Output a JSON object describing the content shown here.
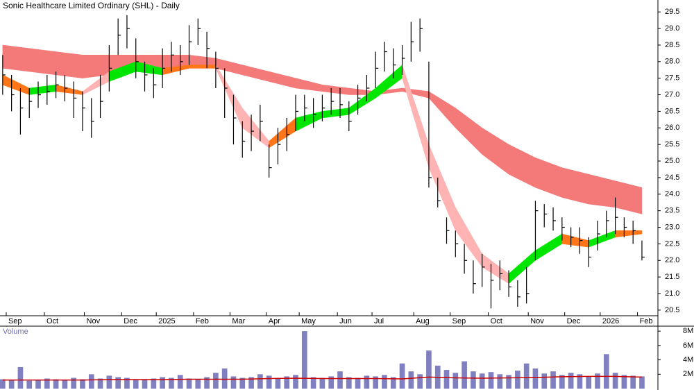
{
  "chart_data": [
    {
      "type": "ohlc",
      "title": "Sonic Healthcare Limited Ordinary (SHL) - Daily",
      "xlim": [
        -0.3,
        73.8
      ],
      "xticks": [
        {
          "value": 0.4,
          "label": "Sep"
        },
        {
          "value": 4.7,
          "label": "Oct"
        },
        {
          "value": 9.2,
          "label": "Nov"
        },
        {
          "value": 13.4,
          "label": "Dec"
        },
        {
          "value": 17.3,
          "label": "2025"
        },
        {
          "value": 21.5,
          "label": "Feb"
        },
        {
          "value": 25.6,
          "label": "Mar"
        },
        {
          "value": 29.7,
          "label": "Apr"
        },
        {
          "value": 33.4,
          "label": "May"
        },
        {
          "value": 37.7,
          "label": "Jun"
        },
        {
          "value": 41.6,
          "label": "Jul"
        },
        {
          "value": 46.3,
          "label": "Aug"
        },
        {
          "value": 50.4,
          "label": "Sep"
        },
        {
          "value": 54.7,
          "label": "Oct"
        },
        {
          "value": 59.2,
          "label": "Nov"
        },
        {
          "value": 63.3,
          "label": "Dec"
        },
        {
          "value": 67.3,
          "label": "2026"
        },
        {
          "value": 71.5,
          "label": "Feb"
        }
      ],
      "ylim": [
        20.33,
        29.86
      ],
      "yticks": [
        20.5,
        {
          "value": 21,
          "label": "21.0"
        },
        21.5,
        {
          "value": 22,
          "label": "22.0"
        },
        22.5,
        {
          "value": 23,
          "label": "23.0"
        },
        23.5,
        {
          "value": 24,
          "label": "24.0"
        },
        24.5,
        {
          "value": 25,
          "label": "25.0"
        },
        25.5,
        {
          "value": 26,
          "label": "26.0"
        },
        26.5,
        {
          "value": 27,
          "label": "27.0"
        },
        27.5,
        {
          "value": 28,
          "label": "28.0"
        },
        28.5,
        {
          "value": 29,
          "label": "29.0"
        },
        29.5
      ],
      "color": "#000000",
      "x": [
        0,
        1,
        2,
        3,
        4,
        5,
        6,
        7,
        8,
        9,
        10,
        11,
        12,
        13,
        14,
        15,
        16,
        17,
        18,
        19,
        20,
        21,
        22,
        23,
        24,
        25,
        26,
        27,
        28,
        29,
        30,
        31,
        32,
        33,
        34,
        35,
        36,
        37,
        38,
        39,
        40,
        41,
        42,
        43,
        44,
        45,
        46,
        47,
        48,
        49,
        50,
        51,
        52,
        53,
        54,
        55,
        56,
        57,
        58,
        59,
        60,
        61,
        62,
        63,
        64,
        65,
        66,
        67,
        68,
        69,
        70,
        71,
        72
      ],
      "high": [
        28.2,
        27.6,
        27.2,
        27.2,
        27.4,
        27.6,
        27.7,
        27.6,
        27.4,
        27.1,
        26.9,
        27.6,
        28.5,
        29.3,
        29.4,
        28.7,
        28.0,
        27.8,
        28.4,
        28.6,
        28.5,
        29.1,
        29.3,
        28.9,
        28.3,
        27.8,
        27.0,
        26.2,
        26.4,
        26.7,
        25.5,
        26.0,
        26.3,
        27.0,
        27.0,
        26.9,
        27.0,
        27.2,
        27.2,
        26.8,
        27.3,
        27.6,
        28.3,
        28.6,
        28.4,
        28.5,
        29.2,
        29.3,
        28.0,
        24.5,
        23.3,
        22.9,
        22.5,
        22.0,
        22.2,
        21.9,
        22.0,
        21.7,
        21.4,
        21.8,
        23.8,
        23.7,
        23.6,
        23.3,
        23.0,
        23.0,
        22.7,
        23.2,
        23.5,
        23.9,
        23.3,
        23.2,
        22.6
      ],
      "low": [
        27.0,
        26.5,
        25.8,
        26.3,
        26.6,
        26.7,
        26.9,
        26.8,
        26.3,
        25.9,
        25.7,
        26.3,
        27.1,
        28.2,
        28.4,
        27.5,
        27.1,
        26.9,
        27.2,
        27.7,
        27.6,
        27.9,
        28.5,
        27.8,
        27.2,
        26.3,
        25.5,
        25.1,
        25.3,
        25.6,
        24.5,
        24.9,
        25.3,
        25.9,
        26.2,
        26.0,
        26.2,
        26.4,
        26.3,
        25.9,
        26.4,
        26.8,
        27.2,
        27.7,
        27.5,
        27.6,
        28.0,
        28.3,
        24.2,
        23.6,
        22.5,
        22.1,
        21.6,
        21.0,
        21.2,
        20.55,
        21.1,
        20.9,
        20.6,
        20.7,
        22.0,
        23.0,
        22.9,
        22.6,
        22.4,
        22.2,
        21.8,
        22.3,
        22.7,
        22.8,
        22.7,
        22.5,
        22.0
      ],
      "close": [
        27.6,
        27.0,
        26.6,
        26.8,
        27.0,
        27.1,
        27.3,
        27.2,
        26.9,
        26.6,
        26.2,
        26.8,
        27.8,
        28.8,
        29.0,
        28.0,
        27.6,
        27.3,
        27.8,
        28.2,
        28.0,
        28.6,
        29.0,
        28.4,
        27.8,
        27.2,
        26.3,
        25.6,
        25.9,
        26.2,
        24.8,
        25.5,
        25.8,
        26.5,
        26.6,
        26.4,
        26.6,
        26.8,
        26.7,
        26.2,
        26.9,
        27.2,
        27.8,
        28.3,
        27.9,
        28.1,
        28.6,
        29.0,
        24.5,
        23.8,
        22.9,
        22.5,
        22.0,
        21.3,
        21.8,
        21.4,
        21.6,
        21.2,
        20.9,
        21.0,
        23.5,
        23.4,
        23.2,
        23.0,
        22.7,
        22.6,
        22.1,
        22.8,
        23.2,
        23.3,
        23.0,
        22.9,
        22.1
      ],
      "band_x": [
        0,
        3,
        6,
        9,
        12,
        15,
        18,
        21,
        24,
        27,
        30,
        33,
        36,
        39,
        42,
        45,
        48,
        51,
        54,
        57,
        60,
        63,
        66,
        69,
        72
      ],
      "bands": [
        {
          "color": "#f47a7a",
          "upper": [
            28.5,
            28.4,
            28.3,
            28.2,
            28.2,
            28.2,
            28.2,
            28.2,
            28.1,
            27.9,
            27.7,
            27.5,
            27.3,
            27.2,
            27.1,
            27.2,
            27.1,
            26.6,
            26.0,
            25.5,
            25.1,
            24.8,
            24.6,
            24.4,
            24.2
          ],
          "lower": [
            27.8,
            27.7,
            27.6,
            27.5,
            27.6,
            27.7,
            27.7,
            27.8,
            27.8,
            27.6,
            27.4,
            27.2,
            27.1,
            27.0,
            27.0,
            27.1,
            26.9,
            26.0,
            25.2,
            24.6,
            24.2,
            23.9,
            23.7,
            23.6,
            23.4
          ]
        },
        {
          "segment_colors": [
            "#ff7518",
            "#00e600",
            "#ff7518",
            "#ffb3b3",
            "#00e600",
            "#00e600",
            "#ff7518",
            "#ff7518",
            "#ffb3b3",
            "#ffb3b3",
            "#ff7518",
            "#00e600",
            "#00e600",
            "#00e600",
            "#00e600",
            "#ffb3b3",
            "#ffb3b3",
            "#ffb3b3",
            "#ffb3b3",
            "#00e600",
            "#00e600",
            "#ff7518",
            "#00e600",
            "#ff7518"
          ],
          "upper": [
            27.6,
            27.2,
            27.3,
            27.1,
            27.7,
            28.0,
            27.8,
            27.9,
            27.9,
            26.6,
            25.6,
            26.3,
            26.5,
            26.6,
            27.2,
            27.9,
            25.5,
            23.6,
            22.2,
            21.6,
            22.3,
            22.8,
            22.6,
            22.9,
            22.9
          ],
          "lower": [
            27.3,
            27.0,
            27.1,
            27.0,
            27.4,
            27.7,
            27.6,
            27.8,
            27.8,
            26.0,
            25.4,
            25.9,
            26.3,
            26.4,
            26.9,
            27.5,
            24.8,
            22.9,
            21.8,
            21.3,
            22.0,
            22.5,
            22.4,
            22.7,
            22.8
          ]
        }
      ]
    },
    {
      "type": "bar",
      "title": "Volume",
      "color": "#8080c0",
      "xlim": [
        -0.3,
        73.8
      ],
      "ylim": [
        0,
        8.5
      ],
      "yticks": [
        {
          "value": 2,
          "label": "2M"
        },
        {
          "value": 4,
          "label": "4M"
        },
        {
          "value": 6,
          "label": "6M"
        },
        {
          "value": 8,
          "label": "8M"
        }
      ],
      "x": [
        0,
        1,
        2,
        3,
        4,
        5,
        6,
        7,
        8,
        9,
        10,
        11,
        12,
        13,
        14,
        15,
        16,
        17,
        18,
        19,
        20,
        21,
        22,
        23,
        24,
        25,
        26,
        27,
        28,
        29,
        30,
        31,
        32,
        33,
        34,
        35,
        36,
        37,
        38,
        39,
        40,
        41,
        42,
        43,
        44,
        45,
        46,
        47,
        48,
        49,
        50,
        51,
        52,
        53,
        54,
        55,
        56,
        57,
        58,
        59,
        60,
        61,
        62,
        63,
        64,
        65,
        66,
        67,
        68,
        69,
        70,
        71,
        72
      ],
      "values": [
        1.3,
        1.2,
        3.0,
        1.1,
        1.2,
        1.4,
        1.3,
        1.2,
        1.5,
        1.3,
        2.0,
        1.4,
        1.8,
        1.6,
        1.5,
        1.3,
        1.2,
        1.4,
        1.6,
        1.5,
        1.9,
        1.4,
        1.3,
        1.6,
        2.2,
        2.8,
        1.7,
        1.5,
        1.6,
        2.0,
        1.8,
        1.5,
        1.7,
        1.9,
        8.0,
        1.6,
        1.5,
        1.7,
        2.4,
        1.6,
        1.5,
        1.8,
        1.7,
        1.9,
        1.6,
        3.5,
        2.4,
        2.0,
        5.3,
        3.2,
        2.6,
        2.2,
        3.8,
        2.4,
        2.1,
        2.3,
        2.0,
        1.9,
        2.5,
        3.5,
        2.8,
        2.1,
        2.4,
        1.9,
        2.2,
        2.0,
        1.7,
        2.1,
        4.8,
        2.2,
        1.9,
        1.8,
        1.7
      ],
      "avg_x": [
        0,
        3,
        6,
        9,
        12,
        15,
        18,
        21,
        24,
        27,
        30,
        33,
        36,
        39,
        42,
        45,
        48,
        51,
        54,
        57,
        60,
        63,
        66,
        69,
        72
      ],
      "avg": [
        1.2,
        1.2,
        1.2,
        1.2,
        1.25,
        1.25,
        1.25,
        1.3,
        1.3,
        1.3,
        1.4,
        1.45,
        1.4,
        1.4,
        1.4,
        1.35,
        1.6,
        1.5,
        1.45,
        1.5,
        1.55,
        1.65,
        1.7,
        1.7,
        1.6
      ],
      "avg_color": "#cc0000"
    }
  ]
}
